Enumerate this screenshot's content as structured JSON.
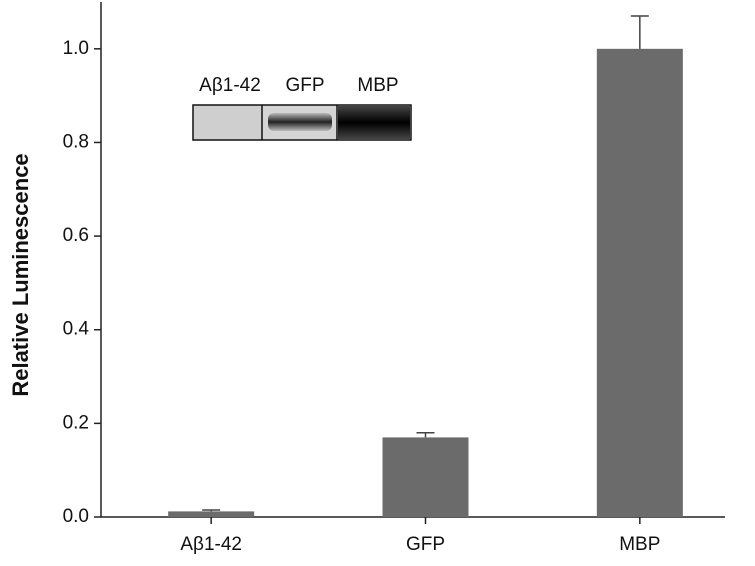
{
  "chart_data": {
    "type": "bar",
    "y_label": "Relative Luminescence",
    "categories": [
      "Aβ1-42",
      "GFP",
      "MBP"
    ],
    "values": [
      0.012,
      0.17,
      1.0
    ],
    "errors": [
      0.003,
      0.01,
      0.07
    ],
    "color": "#6b6b6b",
    "ylim": [
      0,
      1.1
    ],
    "yticks": [
      {
        "value": 0,
        "label": "0.0"
      },
      0.2,
      0.4,
      0.6,
      0.8,
      {
        "value": 1,
        "label": "1.0"
      }
    ],
    "inset_labels": [
      "Aβ1-42",
      "GFP",
      "MBP"
    ]
  }
}
